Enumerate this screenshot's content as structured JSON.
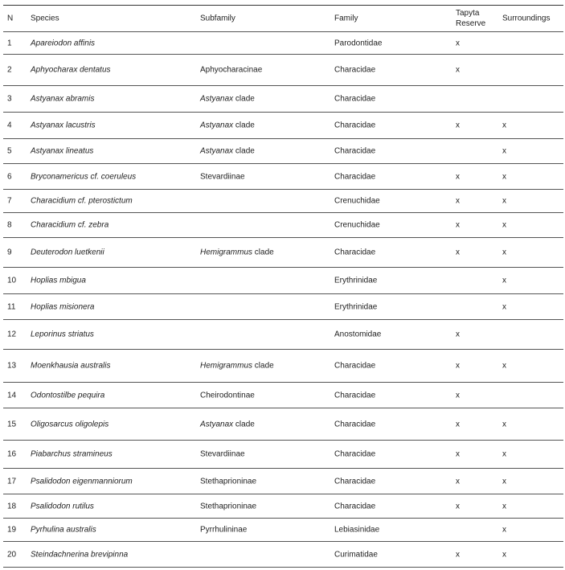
{
  "table": {
    "headers": {
      "n": "N",
      "species": "Species",
      "subfamily": "Subfamily",
      "family": "Family",
      "tapyta_line1": "Tapyta",
      "tapyta_line2": "Reserve",
      "surroundings": "Surroundings"
    },
    "rows": [
      {
        "n": "1",
        "species": "Apareiodon affinis",
        "subfamily_italic": "",
        "subfamily": "",
        "family": "Parodontidae",
        "tapyta": "x",
        "surroundings": ""
      },
      {
        "n": "2",
        "species": "Aphyocharax dentatus",
        "subfamily_italic": "",
        "subfamily": "Aphyocharacinae",
        "family": "Characidae",
        "tapyta": "x",
        "surroundings": ""
      },
      {
        "n": "3",
        "species": "Astyanax abramis",
        "subfamily_italic": "Astyanax",
        "subfamily": " clade",
        "family": "Characidae",
        "tapyta": "",
        "surroundings": ""
      },
      {
        "n": "4",
        "species": "Astyanax lacustris",
        "subfamily_italic": "Astyanax",
        "subfamily": " clade",
        "family": "Characidae",
        "tapyta": "x",
        "surroundings": "x"
      },
      {
        "n": "5",
        "species": "Astyanax lineatus",
        "subfamily_italic": "Astyanax",
        "subfamily": " clade",
        "family": "Characidae",
        "tapyta": "",
        "surroundings": "x"
      },
      {
        "n": "6",
        "species": "Bryconamericus cf. coeruleus",
        "subfamily_italic": "",
        "subfamily": "Stevardiinae",
        "family": "Characidae",
        "tapyta": "x",
        "surroundings": "x"
      },
      {
        "n": "7",
        "species": "Characidium cf. pterostictum",
        "subfamily_italic": "",
        "subfamily": "",
        "family": "Crenuchidae",
        "tapyta": "x",
        "surroundings": "x"
      },
      {
        "n": "8",
        "species": "Characidium cf. zebra",
        "subfamily_italic": "",
        "subfamily": "",
        "family": "Crenuchidae",
        "tapyta": "x",
        "surroundings": "x"
      },
      {
        "n": "9",
        "species": "Deuterodon luetkenii",
        "subfamily_italic": "Hemigrammus",
        "subfamily": " clade",
        "family": "Characidae",
        "tapyta": "x",
        "surroundings": "x"
      },
      {
        "n": "10",
        "species": "Hoplias mbigua",
        "subfamily_italic": "",
        "subfamily": "",
        "family": "Erythrinidae",
        "tapyta": "",
        "surroundings": "x"
      },
      {
        "n": "11",
        "species": "Hoplias misionera",
        "subfamily_italic": "",
        "subfamily": "",
        "family": "Erythrinidae",
        "tapyta": "",
        "surroundings": "x"
      },
      {
        "n": "12",
        "species": "Leporinus striatus",
        "subfamily_italic": "",
        "subfamily": "",
        "family": "Anostomidae",
        "tapyta": "x",
        "surroundings": ""
      },
      {
        "n": "13",
        "species": "Moenkhausia australis",
        "subfamily_italic": "Hemigrammus",
        "subfamily": " clade",
        "family": "Characidae",
        "tapyta": "x",
        "surroundings": "x"
      },
      {
        "n": "14",
        "species": "Odontostilbe pequira",
        "subfamily_italic": "",
        "subfamily": "Cheirodontinae",
        "family": "Characidae",
        "tapyta": "x",
        "surroundings": ""
      },
      {
        "n": "15",
        "species": "Oligosarcus oligolepis",
        "subfamily_italic": "Astyanax",
        "subfamily": " clade",
        "family": "Characidae",
        "tapyta": "x",
        "surroundings": "x"
      },
      {
        "n": "16",
        "species": "Piabarchus stramineus",
        "subfamily_italic": "",
        "subfamily": "Stevardiinae",
        "family": "Characidae",
        "tapyta": "x",
        "surroundings": "x"
      },
      {
        "n": "17",
        "species": "Psalidodon eigenmanniorum",
        "subfamily_italic": "",
        "subfamily": "Stethaprioninae",
        "family": "Characidae",
        "tapyta": "x",
        "surroundings": "x"
      },
      {
        "n": "18",
        "species": "Psalidodon rutilus",
        "subfamily_italic": "",
        "subfamily": "Stethaprioninae",
        "family": "Characidae",
        "tapyta": "x",
        "surroundings": "x"
      },
      {
        "n": "19",
        "species": "Pyrhulina australis",
        "subfamily_italic": "",
        "subfamily": "Pyrrhulininae",
        "family": "Lebiasinidae",
        "tapyta": "",
        "surroundings": "x"
      },
      {
        "n": "20",
        "species": "Steindachnerina brevipinna",
        "subfamily_italic": "",
        "subfamily": "",
        "family": "Curimatidae",
        "tapyta": "x",
        "surroundings": "x"
      }
    ]
  }
}
